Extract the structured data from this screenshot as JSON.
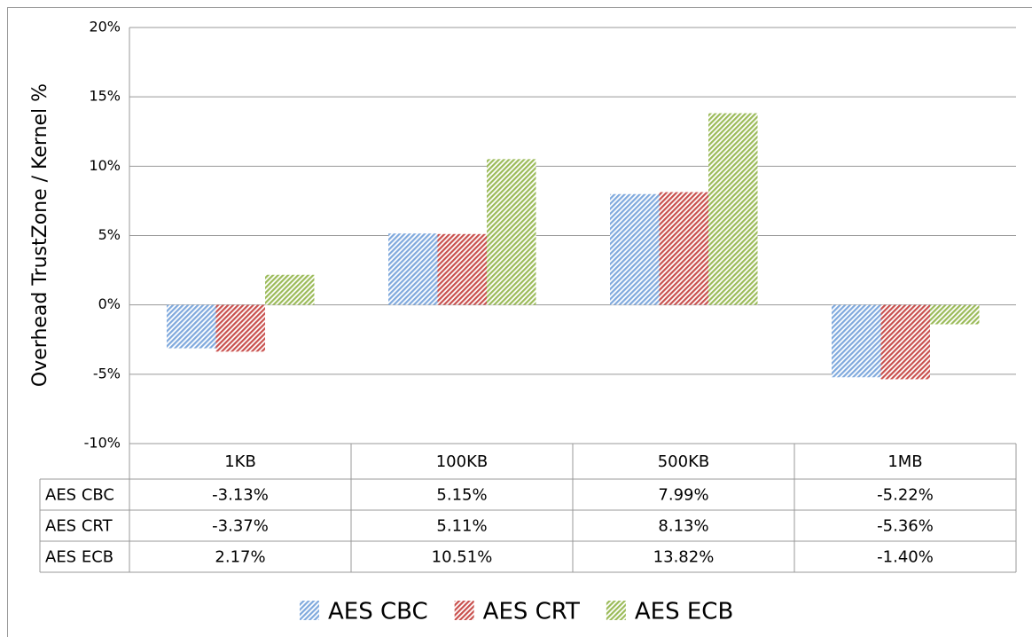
{
  "chart_data": {
    "type": "bar",
    "y_label": "Overhead TrustZone / Kernel %",
    "categories": [
      "1KB",
      "100KB",
      "500KB",
      "1MB"
    ],
    "series": [
      {
        "name": "AES CBC",
        "color": "#7fa9dd",
        "values": [
          -3.13,
          5.15,
          7.99,
          -5.22
        ],
        "value_labels": [
          "-3.13%",
          "5.15%",
          "7.99%",
          "-5.22%"
        ]
      },
      {
        "name": "AES CRT",
        "color": "#c9504d",
        "values": [
          -3.37,
          5.11,
          8.13,
          -5.36
        ],
        "value_labels": [
          "-3.37%",
          "5.11%",
          "8.13%",
          "-5.36%"
        ]
      },
      {
        "name": "AES ECB",
        "color": "#9bbb59",
        "values": [
          2.17,
          10.51,
          13.82,
          -1.4
        ],
        "value_labels": [
          "2.17%",
          "10.51%",
          "13.82%",
          "-1.40%"
        ]
      }
    ],
    "ylim": [
      -10,
      20
    ],
    "yticks": [
      {
        "value": -10,
        "label": "-10%"
      },
      {
        "value": -5,
        "label": "-5%"
      },
      {
        "value": 0,
        "label": "0%"
      },
      {
        "value": 5,
        "label": "5%"
      },
      {
        "value": 10,
        "label": "10%"
      },
      {
        "value": 15,
        "label": "15%"
      },
      {
        "value": 20,
        "label": "20%"
      }
    ],
    "grid": true,
    "legend": "bottom"
  }
}
